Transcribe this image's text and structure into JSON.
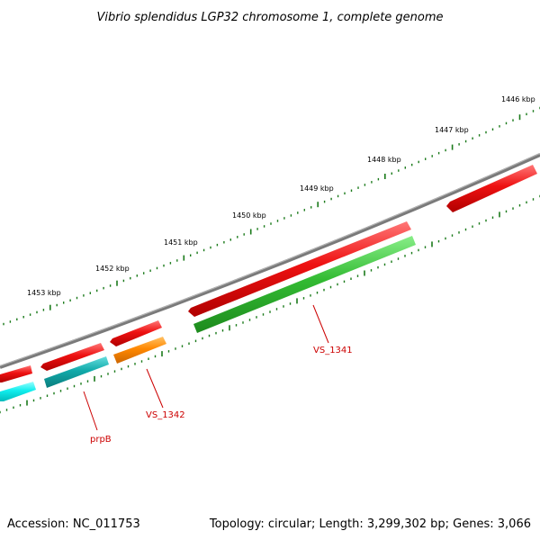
{
  "title": "Vibrio splendidus LGP32 chromosome 1, complete genome",
  "footer": {
    "accession": "Accession: NC_011753",
    "summary": "Topology: circular; Length: 3,299,302 bp; Genes: 3,066"
  },
  "colors": {
    "backbone": "#7a7a7a",
    "ticks": "#1a7a1a",
    "gene_red": "#ee1111",
    "gene_green": "#33bb33",
    "gene_orange": "#ff8800",
    "gene_teal": "#11aaaa",
    "gene_cyan": "#11eeee",
    "label": "#cc0000"
  },
  "scale_labels": [
    "1446 kbp",
    "1447 kbp",
    "1448 kbp",
    "1449 kbp",
    "1450 kbp",
    "1451 kbp",
    "1452 kbp",
    "1453 kbp"
  ],
  "gene_labels": [
    "VS_1341",
    "VS_1342",
    "prpB"
  ]
}
